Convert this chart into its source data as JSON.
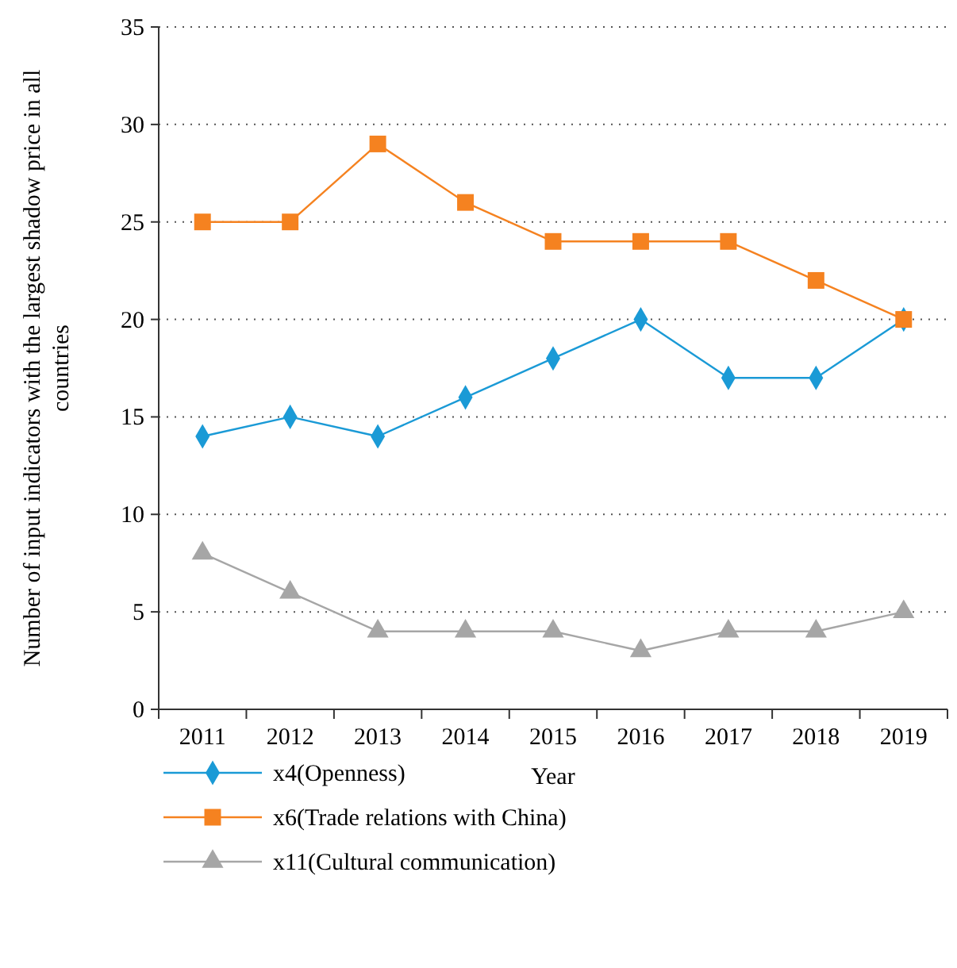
{
  "chart_data": {
    "type": "line",
    "xlabel": "Year",
    "ylabel": "Number of input indicators with the largest shadow price in all countries",
    "categories": [
      "2011",
      "2012",
      "2013",
      "2014",
      "2015",
      "2016",
      "2017",
      "2018",
      "2019"
    ],
    "series": [
      {
        "name": "x4(Openness)",
        "color": "#1a9ad6",
        "marker": "diamond",
        "values": [
          14,
          15,
          14,
          16,
          18,
          20,
          17,
          17,
          20
        ]
      },
      {
        "name": "x6(Trade relations with China)",
        "color": "#f58220",
        "marker": "square",
        "values": [
          25,
          25,
          29,
          26,
          24,
          24,
          24,
          22,
          20
        ]
      },
      {
        "name": "x11(Cultural communication)",
        "color": "#a6a6a6",
        "marker": "triangle",
        "values": [
          8,
          6,
          4,
          4,
          4,
          3,
          4,
          4,
          5
        ]
      }
    ],
    "ylim": [
      0,
      35
    ],
    "yticks": [
      0,
      5,
      10,
      15,
      20,
      25,
      30,
      35
    ],
    "grid": "y",
    "legend": "bottom",
    "line_style": "solid"
  }
}
